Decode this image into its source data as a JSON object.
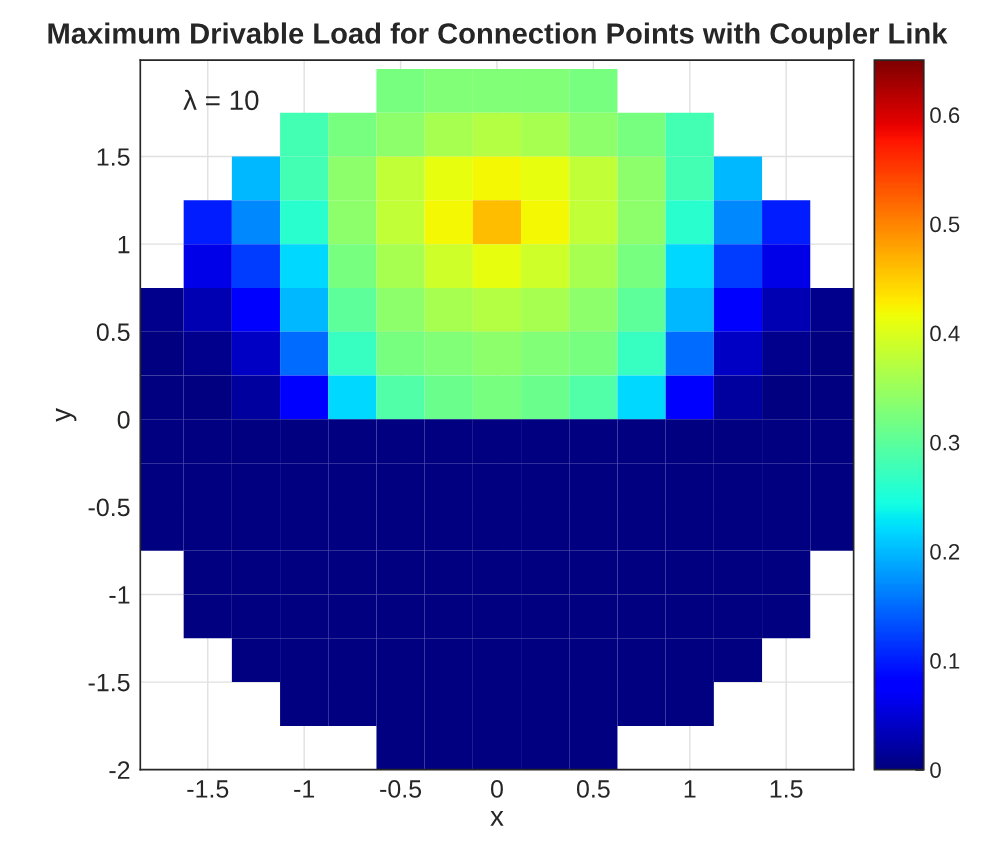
{
  "chart_data": {
    "type": "heatmap",
    "title": "Maximum Drivable Load for Connection Points with Coupler Link",
    "xlabel": "x",
    "ylabel": "y",
    "x": [
      -1.75,
      -1.5,
      -1.25,
      -1.0,
      -0.75,
      -0.5,
      -0.25,
      0.0,
      0.25,
      0.5,
      0.75,
      1.0,
      1.25,
      1.5,
      1.75
    ],
    "y": [
      1.875,
      1.625,
      1.375,
      1.125,
      0.875,
      0.625,
      0.375,
      0.125,
      -0.125,
      -0.375,
      -0.625,
      -0.875,
      -1.125,
      -1.375,
      -1.625,
      -1.875
    ],
    "cells": [
      [
        null,
        null,
        null,
        null,
        null,
        0.32,
        0.33,
        0.33,
        0.33,
        0.32,
        null,
        null,
        null,
        null,
        null
      ],
      [
        null,
        null,
        null,
        0.28,
        0.32,
        0.34,
        0.36,
        0.37,
        0.36,
        0.34,
        0.32,
        0.28,
        null,
        null,
        null
      ],
      [
        null,
        null,
        0.2,
        0.28,
        0.34,
        0.38,
        0.41,
        0.42,
        0.41,
        0.38,
        0.34,
        0.28,
        0.2,
        null,
        null
      ],
      [
        null,
        0.1,
        0.17,
        0.26,
        0.34,
        0.38,
        0.42,
        0.46,
        0.42,
        0.38,
        0.34,
        0.26,
        0.17,
        0.1,
        null
      ],
      [
        null,
        0.06,
        0.12,
        0.22,
        0.32,
        0.36,
        0.39,
        0.41,
        0.39,
        0.36,
        0.32,
        0.22,
        0.12,
        0.06,
        null
      ],
      [
        0.01,
        0.03,
        0.08,
        0.2,
        0.3,
        0.34,
        0.36,
        0.37,
        0.36,
        0.34,
        0.3,
        0.2,
        0.08,
        0.03,
        0.01
      ],
      [
        0,
        0.01,
        0.04,
        0.15,
        0.27,
        0.32,
        0.33,
        0.34,
        0.33,
        0.32,
        0.27,
        0.15,
        0.04,
        0.01,
        0
      ],
      [
        0,
        0,
        0.02,
        0.08,
        0.22,
        0.29,
        0.31,
        0.32,
        0.31,
        0.29,
        0.22,
        0.08,
        0.02,
        0,
        0
      ],
      [
        0,
        0,
        0,
        0,
        0,
        0,
        0,
        0,
        0,
        0,
        0,
        0,
        0,
        0,
        0
      ],
      [
        0,
        0,
        0,
        0,
        0,
        0,
        0,
        0,
        0,
        0,
        0,
        0,
        0,
        0,
        0
      ],
      [
        0,
        0,
        0,
        0,
        0,
        0,
        0,
        0,
        0,
        0,
        0,
        0,
        0,
        0,
        0
      ],
      [
        null,
        0,
        0,
        0,
        0,
        0,
        0,
        0,
        0,
        0,
        0,
        0,
        0,
        0,
        null
      ],
      [
        null,
        0,
        0,
        0,
        0,
        0,
        0,
        0,
        0,
        0,
        0,
        0,
        0,
        0,
        null
      ],
      [
        null,
        null,
        0,
        0,
        0,
        0,
        0,
        0,
        0,
        0,
        0,
        0,
        0,
        null,
        null
      ],
      [
        null,
        null,
        null,
        0,
        0,
        0,
        0,
        0,
        0,
        0,
        0,
        0,
        null,
        null,
        null
      ],
      [
        null,
        null,
        null,
        null,
        null,
        0,
        0,
        0,
        0,
        0,
        null,
        null,
        null,
        null,
        null
      ]
    ],
    "clim": [
      0,
      0.65
    ],
    "cticks": [
      0,
      0.1,
      0.2,
      0.3,
      0.4,
      0.5,
      0.6
    ],
    "xlim": [
      -1.85,
      1.85
    ],
    "ylim": [
      -2,
      2.05
    ],
    "xticks": [
      -1.5,
      -1,
      -0.5,
      0,
      0.5,
      1,
      1.5
    ],
    "yticks": [
      -2,
      -1.5,
      -1,
      -0.5,
      0,
      0.5,
      1,
      1.5
    ],
    "grid": true,
    "annotations": [
      "λ = 10"
    ]
  }
}
